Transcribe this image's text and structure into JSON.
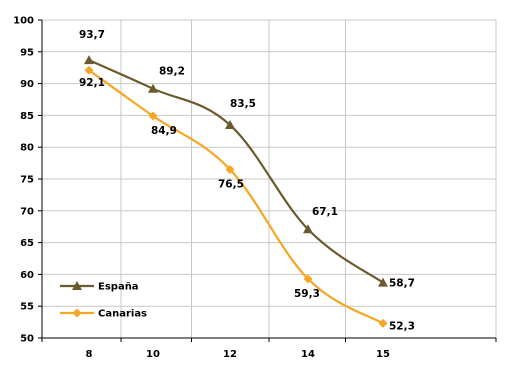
{
  "chart_data": {
    "type": "line",
    "title": "",
    "xlabel": "",
    "ylabel": "",
    "x": [
      "8",
      "10",
      "12",
      "14",
      "15"
    ],
    "ylim": [
      50,
      100
    ],
    "yticks": [
      50,
      55,
      60,
      65,
      70,
      75,
      80,
      85,
      90,
      95,
      100
    ],
    "grid": true,
    "legend_position": "bottom-left",
    "series": [
      {
        "name": "España",
        "values": [
          93.7,
          89.2,
          83.5,
          67.1,
          58.7
        ],
        "labels": [
          "93,7",
          "89,2",
          "83,5",
          "67,1",
          "58,7"
        ],
        "color": "#6b5a2e",
        "marker": "triangle"
      },
      {
        "name": "Canarias",
        "values": [
          92.1,
          84.9,
          76.5,
          59.3,
          52.3
        ],
        "labels": [
          "92,1",
          "84,9",
          "76,5",
          "59,3",
          "52,3"
        ],
        "color": "#f5a623",
        "marker": "diamond"
      }
    ]
  }
}
